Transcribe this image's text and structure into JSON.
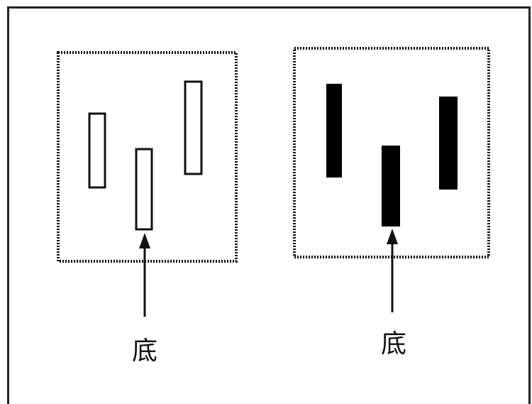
{
  "panels": [
    {
      "id": "left",
      "candle_fill": "#ffffff",
      "label": "底"
    },
    {
      "id": "right",
      "candle_fill": "#000000",
      "label": "底"
    }
  ],
  "colors": {
    "stroke": "#111111",
    "box_dots": "#111111",
    "filled_candle": "#000000",
    "hollow_candle": "#ffffff"
  }
}
